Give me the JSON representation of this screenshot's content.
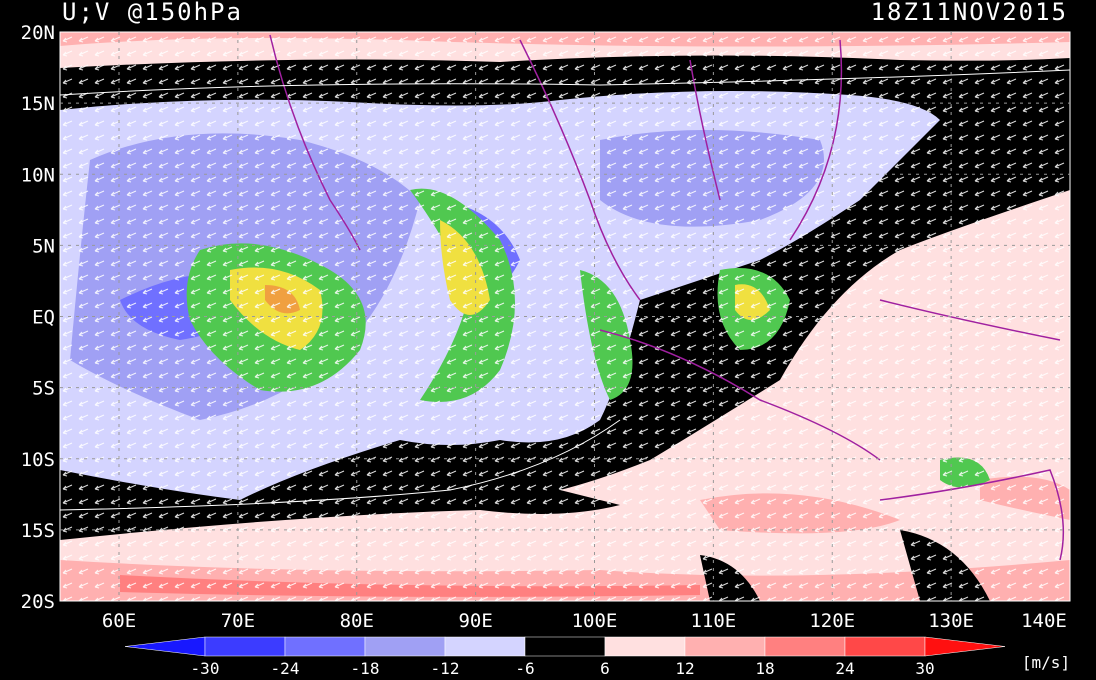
{
  "header": {
    "title": "U;V @150hPa",
    "timestamp": "18Z11NOV2015"
  },
  "axes": {
    "lat_labels": [
      "20N",
      "15N",
      "10N",
      "5N",
      "EQ",
      "5S",
      "10S",
      "15S",
      "20S"
    ],
    "lon_labels": [
      "60E",
      "70E",
      "80E",
      "90E",
      "100E",
      "110E",
      "120E",
      "130E",
      "140E"
    ]
  },
  "colorbar": {
    "ticks": [
      "-30",
      "-24",
      "-18",
      "-12",
      "-6",
      "6",
      "12",
      "18",
      "24",
      "30"
    ],
    "colors": [
      "#1818ff",
      "#3c3cff",
      "#7070ff",
      "#a0a0f4",
      "#d4d4ff",
      "#000000",
      "#ffe0e0",
      "#ffb0b0",
      "#ff8080",
      "#ff4848",
      "#ff1010"
    ],
    "unit": "[m/s]"
  }
}
